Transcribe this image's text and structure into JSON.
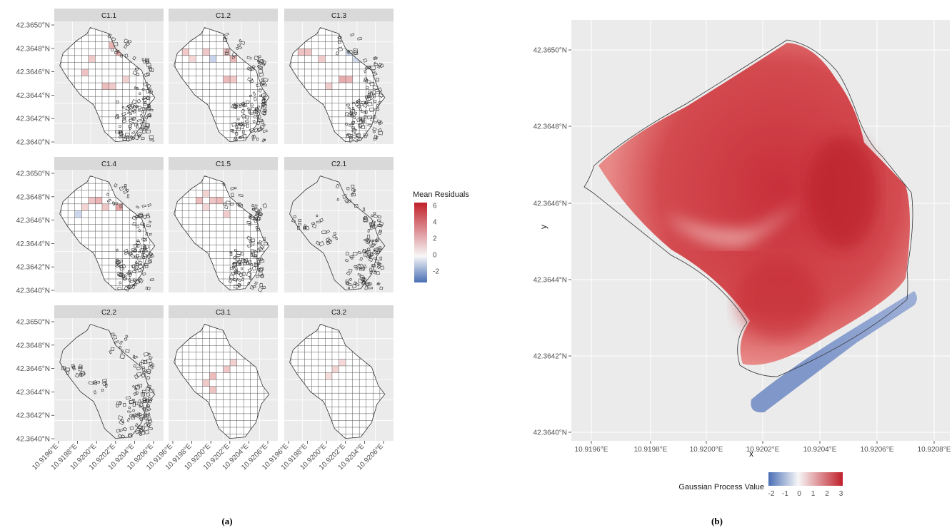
{
  "panel_a": {
    "caption": "(a)",
    "legend_title": "Mean Residuals",
    "legend_ticks": [
      "6",
      "4",
      "2",
      "0",
      "-2"
    ],
    "y_ticks": [
      "42.3650°N",
      "42.3648°N",
      "42.3646°N",
      "42.3644°N",
      "42.3642°N",
      "42.3640°N"
    ],
    "x_ticks": [
      "10.9196°E",
      "10.9198°E",
      "10.9200°E",
      "10.9202°E",
      "10.9204°E",
      "10.9206°E"
    ],
    "facets": [
      {
        "label": "C1.1"
      },
      {
        "label": "C1.2"
      },
      {
        "label": "C1.3"
      },
      {
        "label": "C1.4"
      },
      {
        "label": "C1.5"
      },
      {
        "label": "C2.1"
      },
      {
        "label": "C2.2"
      },
      {
        "label": "C3.1"
      },
      {
        "label": "C3.2"
      }
    ]
  },
  "panel_b": {
    "caption": "(b)",
    "xlabel": "x",
    "ylabel": "y",
    "y_ticks": [
      "42.3650°N",
      "42.3648°N",
      "42.3646°N",
      "42.3644°N",
      "42.3642°N",
      "42.3640°N"
    ],
    "x_ticks": [
      "10.9196°E",
      "10.9198°E",
      "10.9200°E",
      "10.9202°E",
      "10.9204°E",
      "10.9206°E",
      "10.9208°E"
    ],
    "legend_title": "Gaussian Process Value",
    "legend_ticks": [
      "-2",
      "-1",
      "0",
      "1",
      "2",
      "3"
    ]
  },
  "colors": {
    "panel_bg": "#ebebeb",
    "strip_bg": "#d9d9d9",
    "grid": "#ffffff",
    "low": "#4a6fb5",
    "mid": "#f7f7f7",
    "high": "#c0202a"
  },
  "chart_data": [
    {
      "type": "heatmap",
      "xlabel": "",
      "ylabel": "",
      "legend_title": "Mean Residuals",
      "color_range": [
        -3,
        6
      ],
      "facet_labels": [
        "C1.1",
        "C1.2",
        "C1.3",
        "C1.4",
        "C1.5",
        "C2.1",
        "C2.2",
        "C3.1",
        "C3.2"
      ],
      "xlim": [
        10.9195,
        10.9207
      ],
      "ylim": [
        42.364,
        42.36505
      ],
      "grid": true
    },
    {
      "type": "heatmap",
      "xlabel": "x",
      "ylabel": "y",
      "legend_title": "Gaussian Process Value",
      "color_range": [
        -2,
        3
      ],
      "xlim": [
        10.91955,
        10.9208
      ],
      "ylim": [
        42.36399,
        42.36506
      ],
      "grid": true
    }
  ]
}
